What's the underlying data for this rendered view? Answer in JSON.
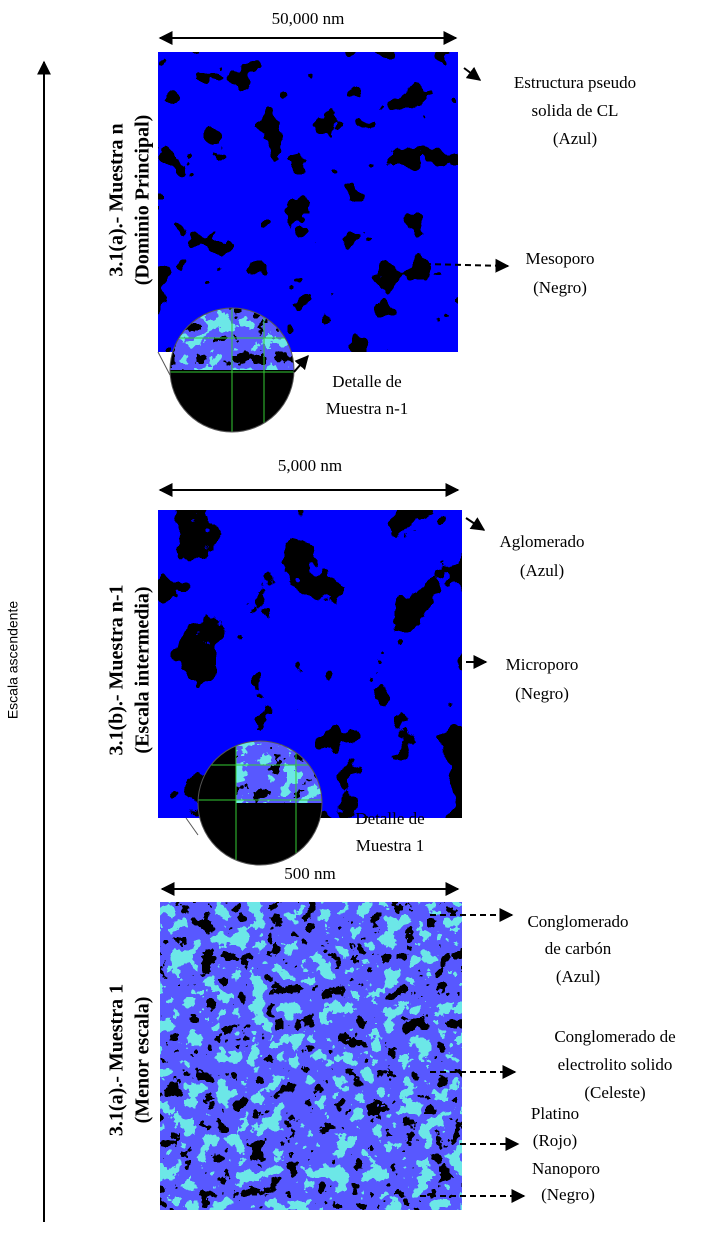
{
  "axis_label": "Escala ascendente",
  "panels": [
    {
      "title": [
        "3.1(a).- Muestra n",
        "(Dominio Principal)"
      ],
      "scale": "50,000 nm",
      "annotations": [
        [
          "Estructura pseudo",
          "solida de CL",
          "(Azul)"
        ],
        [
          "Mesoporo",
          "(Negro)"
        ]
      ],
      "detail": [
        "Detalle de",
        "Muestra n-1"
      ]
    },
    {
      "title": [
        "3.1(b).- Muestra n-1",
        "(Escala intermedia)"
      ],
      "scale": "5,000 nm",
      "annotations": [
        [
          "Aglomerado",
          "(Azul)"
        ],
        [
          "Microporo",
          "(Negro)"
        ]
      ],
      "detail": [
        "Detalle de",
        "Muestra 1"
      ]
    },
    {
      "title": [
        "3.1(a).- Muestra 1",
        "(Menor escala)"
      ],
      "scale": "500 nm",
      "annotations": [
        [
          "Conglomerado",
          "de carbón",
          "(Azul)"
        ],
        [
          "Conglomerado de",
          "electrolito solido",
          "(Celeste)"
        ],
        [
          "Platino",
          "(Rojo)"
        ],
        [
          "Nanoporo",
          "(Negro)"
        ]
      ]
    }
  ]
}
